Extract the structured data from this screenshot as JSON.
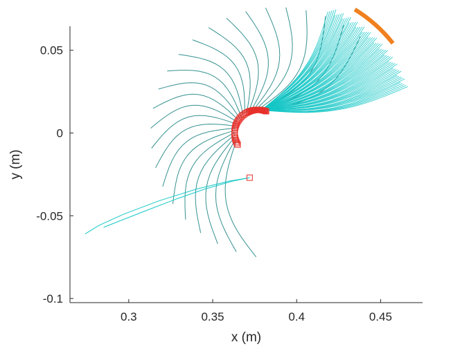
{
  "chart_data": {
    "type": "line",
    "xlabel": "x (m)",
    "ylabel": "y (m)",
    "xlim": [
      0.265,
      0.475
    ],
    "ylim": [
      -0.1025,
      0.0645
    ],
    "xticks": [
      0.3,
      0.35,
      0.4,
      0.45
    ],
    "xtick_labels": [
      "0.3",
      "0.35",
      "0.4",
      "0.45"
    ],
    "yticks": [
      0.05,
      0,
      -0.05,
      -0.1
    ],
    "ytick_labels": [
      "0.05",
      "0",
      "-0.05",
      "-0.1"
    ],
    "grid": false,
    "colors": {
      "trajectory_dark": "#2a8a8a",
      "trajectory_light": "#16c7c7",
      "markers": "#e8302a",
      "arc": "#f0801e",
      "axis": "#262626"
    },
    "arc": {
      "center": [
        0.388,
        0.0
      ],
      "radius": 0.088,
      "angle_start_deg": 38,
      "angle_end_deg": 58
    },
    "trajectory_fans": [
      {
        "style": "dark",
        "count": 24,
        "start_angle_deg": 50,
        "end_angle_deg": 260,
        "radius_start": 0.004,
        "radius_end": 0.076
      },
      {
        "style": "light",
        "count": 70,
        "start_angle_deg": 68,
        "end_angle_deg": 20,
        "radius_start": 0.004,
        "radius_end": 0.079
      }
    ],
    "marker_arc": {
      "center": [
        0.377,
        0.0
      ],
      "radius": 0.014,
      "angle_start_deg": 70,
      "angle_end_deg": 210
    },
    "outlier_trajectories": [
      {
        "x": [
          0.372,
          0.36,
          0.34,
          0.318,
          0.297,
          0.282,
          0.274
        ],
        "y": [
          -0.027,
          -0.029,
          -0.034,
          -0.041,
          -0.049,
          -0.056,
          -0.061
        ]
      },
      {
        "x": [
          0.372,
          0.362,
          0.345,
          0.328,
          0.31,
          0.295,
          0.285
        ],
        "y": [
          -0.027,
          -0.029,
          -0.034,
          -0.04,
          -0.047,
          -0.053,
          -0.057
        ]
      }
    ],
    "outlier_markers": [
      [
        0.372,
        -0.027
      ]
    ]
  }
}
